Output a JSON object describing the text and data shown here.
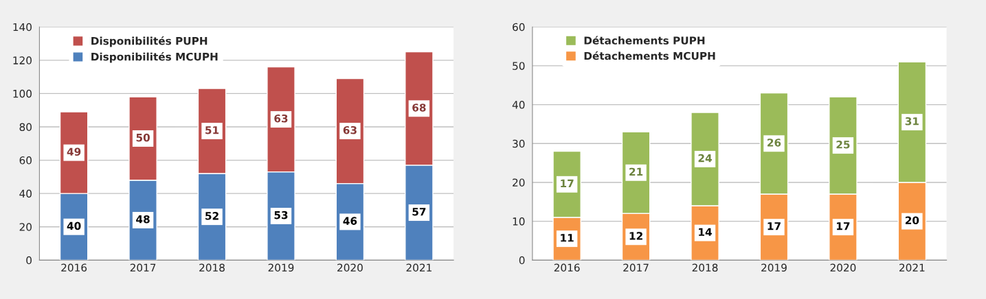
{
  "chart_data": [
    {
      "type": "bar",
      "stacked": true,
      "categories": [
        "2016",
        "2017",
        "2018",
        "2019",
        "2020",
        "2021"
      ],
      "ylim": [
        0,
        140
      ],
      "yticks": [
        0,
        20,
        40,
        60,
        80,
        100,
        120,
        140
      ],
      "grid": "y",
      "legend": "top left",
      "data_labels": true,
      "series": [
        {
          "name": "Disponibilités MCUPH",
          "color": "#4f81bd",
          "values": [
            40,
            48,
            52,
            53,
            46,
            57
          ]
        },
        {
          "name": "Disponibilités PUPH",
          "color": "#c0504d",
          "values": [
            49,
            50,
            51,
            63,
            63,
            68
          ]
        }
      ]
    },
    {
      "type": "bar",
      "stacked": true,
      "categories": [
        "2016",
        "2017",
        "2018",
        "2019",
        "2020",
        "2021"
      ],
      "ylim": [
        0,
        60
      ],
      "yticks": [
        0,
        10,
        20,
        30,
        40,
        50,
        60
      ],
      "grid": "y",
      "legend": "top left",
      "data_labels": true,
      "series": [
        {
          "name": "Détachements MCUPH",
          "color": "#f79646",
          "values": [
            11,
            12,
            14,
            17,
            17,
            20
          ]
        },
        {
          "name": "Détachements PUPH",
          "color": "#9bbb59",
          "values": [
            17,
            21,
            24,
            26,
            25,
            31
          ]
        }
      ]
    }
  ]
}
